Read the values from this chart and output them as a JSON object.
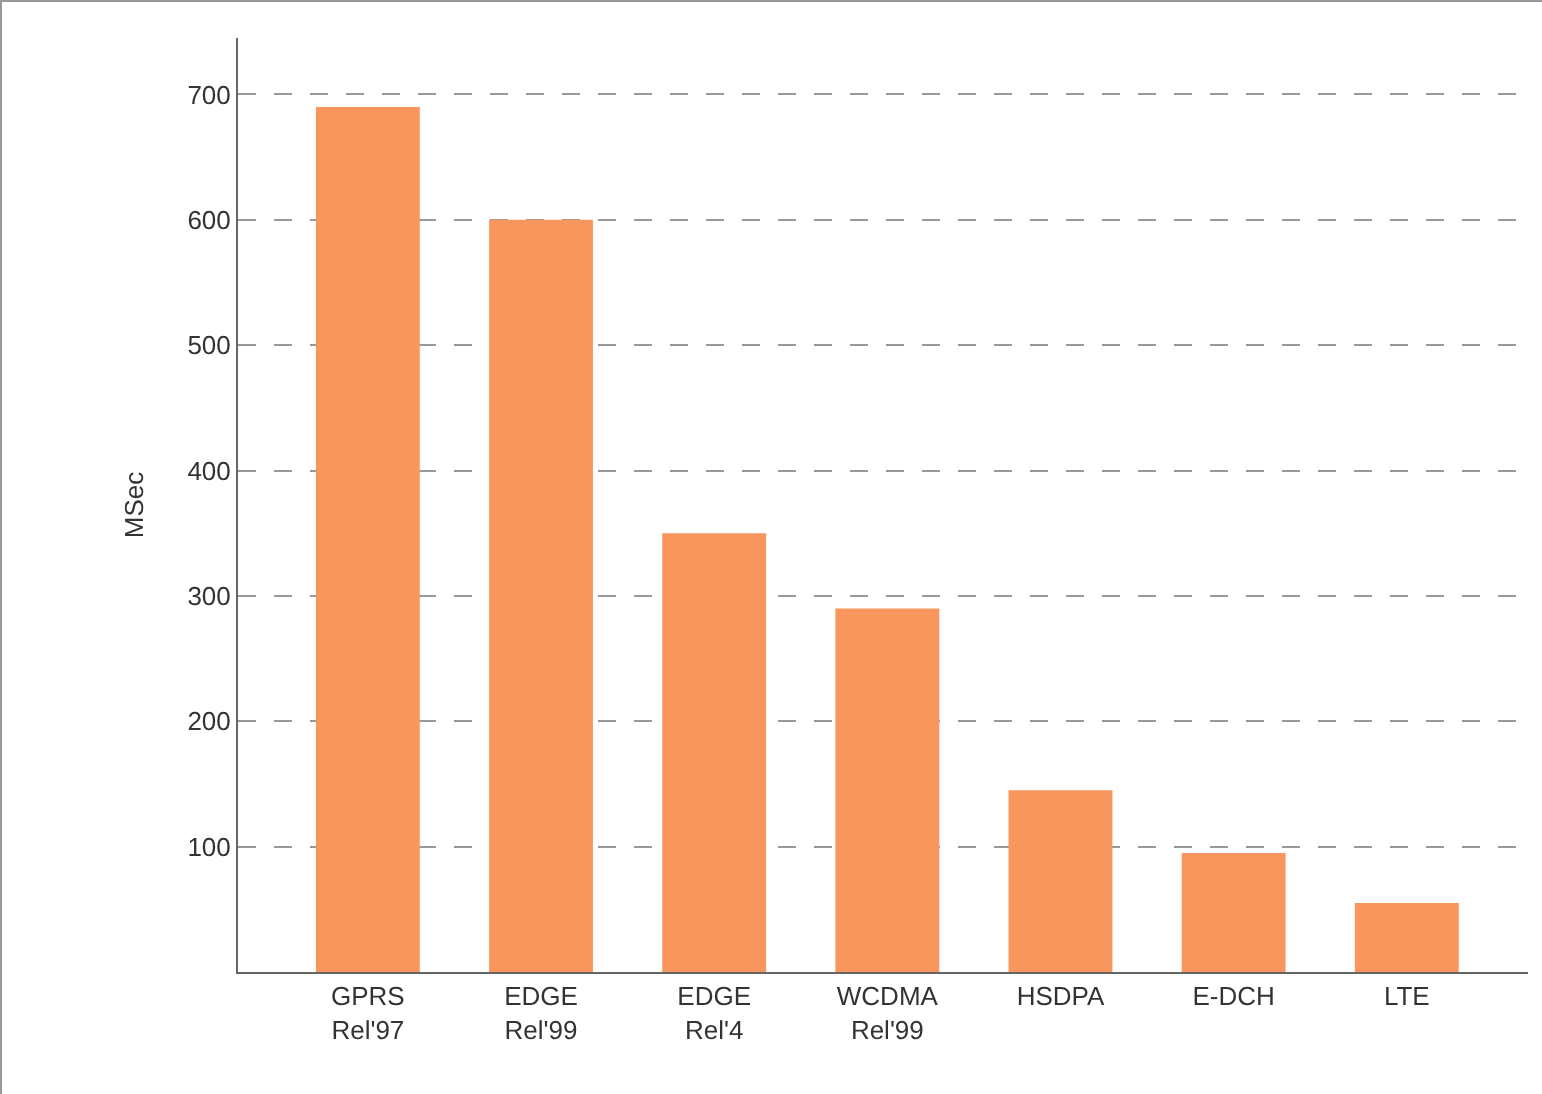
{
  "chart_data": {
    "type": "bar",
    "ylabel": "MSec",
    "categories": [
      "GPRS\nRel'97",
      "EDGE\nRel'99",
      "EDGE\nRel'4",
      "WCDMA\nRel'99",
      "HSDPA",
      "E-DCH",
      "LTE"
    ],
    "values": [
      690,
      600,
      350,
      290,
      145,
      95,
      55
    ],
    "color": "#f9965e",
    "ylim": [
      0,
      745
    ],
    "yticks": [
      100,
      200,
      300,
      400,
      500,
      600,
      700
    ],
    "grid": "y"
  }
}
